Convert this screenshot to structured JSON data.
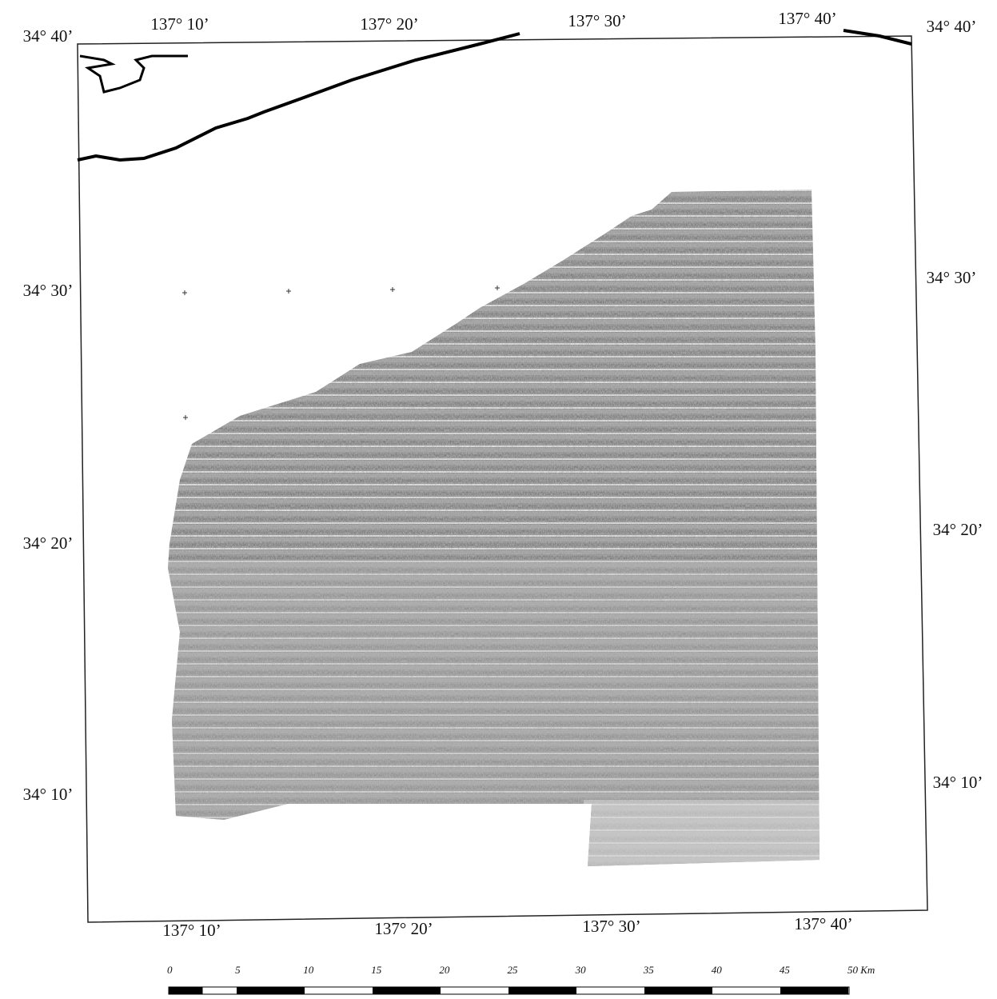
{
  "map": {
    "top_labels": [
      "137° 10’",
      "137° 20’",
      "137° 30’",
      "137° 40’"
    ],
    "bottom_labels": [
      "137° 10’",
      "137° 20’",
      "137° 30’",
      "137° 40’"
    ],
    "left_labels": [
      "34° 40’",
      "34° 30’",
      "34° 20’",
      "34° 10’"
    ],
    "right_labels": [
      "34° 40’",
      "34° 30’",
      "34° 20’",
      "34° 10’"
    ],
    "scale_bar": {
      "labels": [
        "0",
        "5",
        "10",
        "15",
        "20",
        "25",
        "30",
        "35",
        "40",
        "45",
        "50 Km"
      ]
    }
  }
}
